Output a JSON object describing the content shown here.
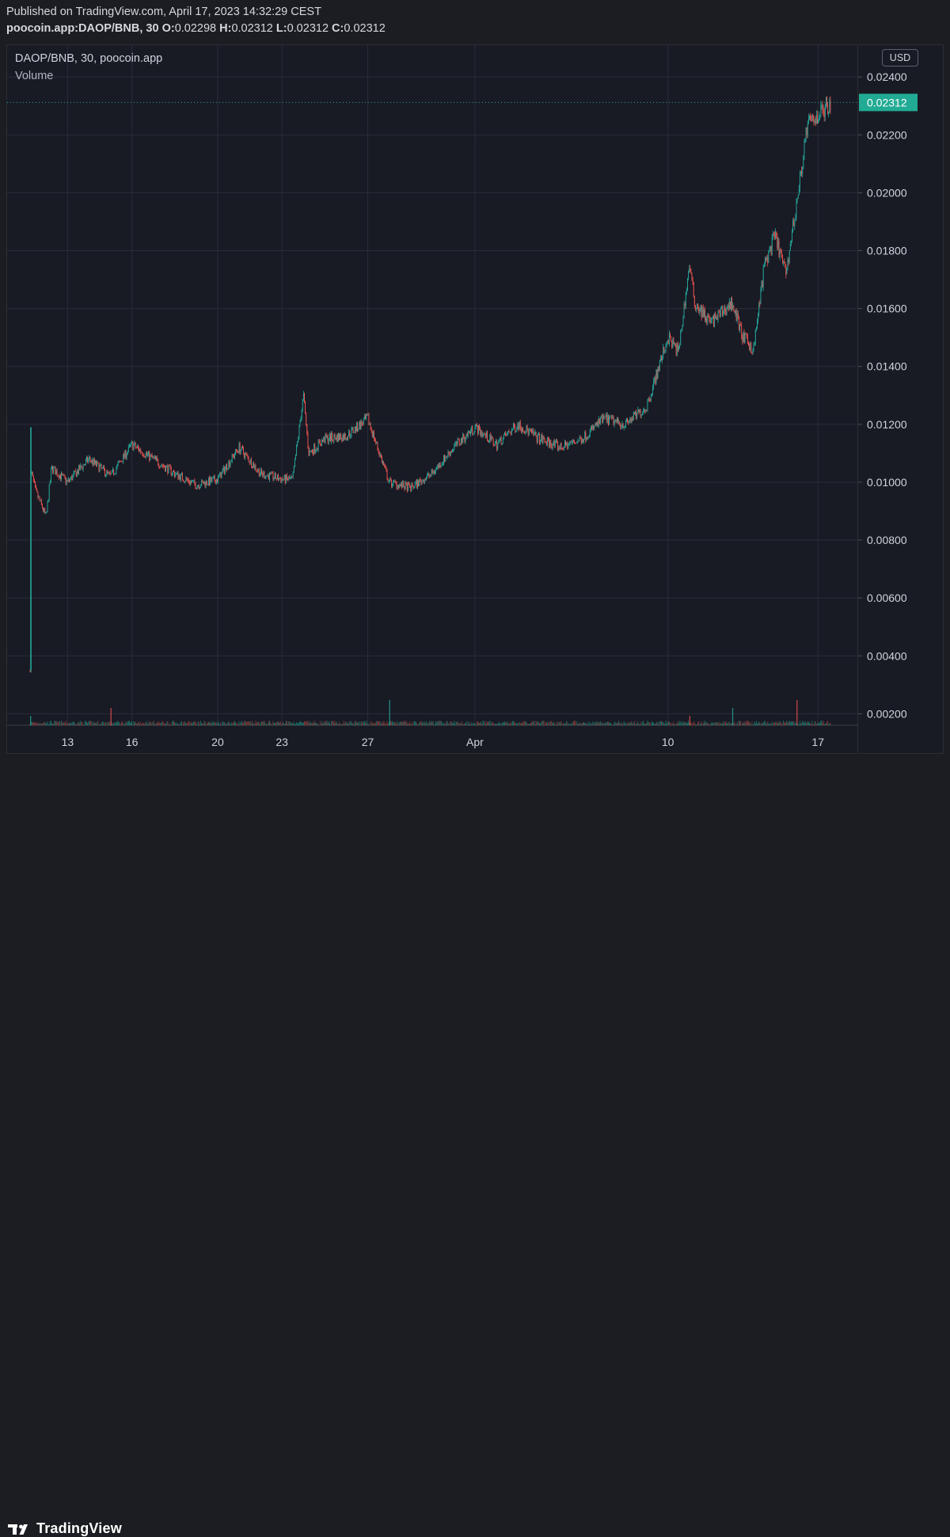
{
  "header": {
    "published": "Published on TradingView.com, April 17, 2023 14:32:29 CEST",
    "symbol": "poocoin.app:DAOP/BNB, 30",
    "o_label": "O:",
    "o_value": "0.02298",
    "h_label": "H:",
    "h_value": "0.02312",
    "l_label": "L:",
    "l_value": "0.02312",
    "c_label": "C:",
    "c_value": "0.02312"
  },
  "legend": {
    "symbol_line": "DAOP/BNB, 30, poocoin.app",
    "volume_label": "Volume"
  },
  "currency_button": "USD",
  "brand": {
    "name": "TradingView"
  },
  "colors": {
    "up": "#26a69a",
    "down": "#ef5350",
    "last_price_bg": "#22ab94",
    "background": "#181a24",
    "grid": "#2a2e39"
  },
  "icons": {
    "logo": "tradingview-logo-icon"
  },
  "chart_data": {
    "type": "candlestick",
    "title": "DAOP/BNB, 30, poocoin.app",
    "interval": "30",
    "currency": "USD",
    "ylim": [
      0.0016,
      0.0251
    ],
    "y_ticks": [
      "0.02400",
      "0.02200",
      "0.02000",
      "0.01800",
      "0.01600",
      "0.01400",
      "0.01200",
      "0.01000",
      "0.00800",
      "0.00600",
      "0.00400",
      "0.00200"
    ],
    "x_tick_labels": [
      "13",
      "16",
      "20",
      "23",
      "27",
      "Apr",
      "10",
      "17"
    ],
    "x_start": "2023-03-11T06:00",
    "x_end": "2023-04-17T14:00",
    "last_price": "0.02312",
    "last_price_line": "dotted",
    "grid": true,
    "series_points": [
      [
        "2023-03-11T06:00",
        0.0035
      ],
      [
        "2023-03-11T07:00",
        0.0104
      ],
      [
        "2023-03-11T12:00",
        0.0097
      ],
      [
        "2023-03-12T00:00",
        0.0088
      ],
      [
        "2023-03-12T06:00",
        0.0105
      ],
      [
        "2023-03-13T00:00",
        0.01
      ],
      [
        "2023-03-14T00:00",
        0.0108
      ],
      [
        "2023-03-15T00:00",
        0.0102
      ],
      [
        "2023-03-16T00:00",
        0.0113
      ],
      [
        "2023-03-17T00:00",
        0.0108
      ],
      [
        "2023-03-18T00:00",
        0.0103
      ],
      [
        "2023-03-19T00:00",
        0.0099
      ],
      [
        "2023-03-20T00:00",
        0.0101
      ],
      [
        "2023-03-21T00:00",
        0.0112
      ],
      [
        "2023-03-22T00:00",
        0.0103
      ],
      [
        "2023-03-23T00:00",
        0.0101
      ],
      [
        "2023-03-23T12:00",
        0.0101
      ],
      [
        "2023-03-24T00:00",
        0.013
      ],
      [
        "2023-03-24T06:00",
        0.011
      ],
      [
        "2023-03-25T00:00",
        0.0115
      ],
      [
        "2023-03-26T00:00",
        0.0116
      ],
      [
        "2023-03-27T00:00",
        0.0122
      ],
      [
        "2023-03-28T00:00",
        0.01
      ],
      [
        "2023-03-29T00:00",
        0.0098
      ],
      [
        "2023-03-30T00:00",
        0.0103
      ],
      [
        "2023-03-31T00:00",
        0.0112
      ],
      [
        "2023-04-01T00:00",
        0.0119
      ],
      [
        "2023-04-02T00:00",
        0.0113
      ],
      [
        "2023-04-03T00:00",
        0.012
      ],
      [
        "2023-04-04T00:00",
        0.0115
      ],
      [
        "2023-04-05T00:00",
        0.0112
      ],
      [
        "2023-04-06T00:00",
        0.0115
      ],
      [
        "2023-04-07T00:00",
        0.0122
      ],
      [
        "2023-04-08T00:00",
        0.012
      ],
      [
        "2023-04-09T00:00",
        0.0126
      ],
      [
        "2023-04-10T00:00",
        0.015
      ],
      [
        "2023-04-10T12:00",
        0.0145
      ],
      [
        "2023-04-11T00:00",
        0.0175
      ],
      [
        "2023-04-11T06:00",
        0.0162
      ],
      [
        "2023-04-12T00:00",
        0.0155
      ],
      [
        "2023-04-13T00:00",
        0.0162
      ],
      [
        "2023-04-13T12:00",
        0.015
      ],
      [
        "2023-04-14T00:00",
        0.0146
      ],
      [
        "2023-04-14T12:00",
        0.0175
      ],
      [
        "2023-04-15T00:00",
        0.0185
      ],
      [
        "2023-04-15T12:00",
        0.0172
      ],
      [
        "2023-04-16T00:00",
        0.0196
      ],
      [
        "2023-04-16T12:00",
        0.0223
      ],
      [
        "2023-04-17T00:00",
        0.0227
      ],
      [
        "2023-04-17T14:00",
        0.02312
      ]
    ],
    "volume_spike_dates": [
      "2023-03-11T06:00",
      "2023-03-15T00:00",
      "2023-03-28T00:00",
      "2023-04-11T00:00",
      "2023-04-13T00:00",
      "2023-04-16T00:00"
    ]
  }
}
